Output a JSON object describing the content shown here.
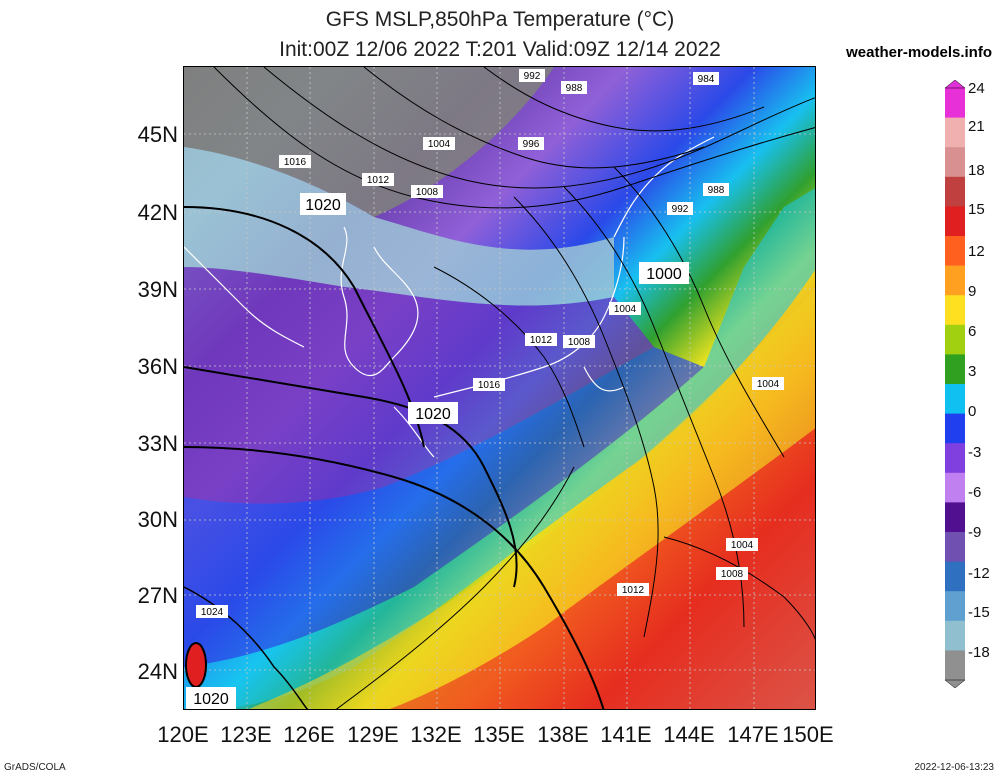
{
  "header": {
    "title_line1": "GFS MSLP,850hPa Temperature (°C)",
    "title_line2": "Init:00Z 12/06 2022 T:201 Valid:09Z 12/14 2022",
    "brand": "weather-models.info"
  },
  "footer": {
    "left": "GrADS/COLA",
    "right": "2022-12-06-13:23"
  },
  "axes": {
    "lat_labels": [
      "45N",
      "42N",
      "39N",
      "36N",
      "33N",
      "30N",
      "27N",
      "24N"
    ],
    "lon_labels": [
      "120E",
      "123E",
      "126E",
      "129E",
      "132E",
      "135E",
      "138E",
      "141E",
      "144E",
      "147E",
      "150E"
    ]
  },
  "colorbar": {
    "labels": [
      "24",
      "21",
      "18",
      "15",
      "12",
      "9",
      "6",
      "3",
      "0",
      "-3",
      "-6",
      "-9",
      "-12",
      "-15",
      "-18"
    ],
    "colors": [
      "#e830d8",
      "#f0b0b0",
      "#d89090",
      "#c04040",
      "#e02020",
      "#ff6020",
      "#ffa020",
      "#ffe020",
      "#a0d010",
      "#30a020",
      "#10c0f0",
      "#2040f0",
      "#8040e0",
      "#c080f0",
      "#501090",
      "#7050b0",
      "#3070c0",
      "#60a0d0",
      "#90c0d0",
      "#909090"
    ]
  },
  "isobars": {
    "labels": [
      "992",
      "988",
      "984",
      "1004",
      "996",
      "1016",
      "1012",
      "1008",
      "1020",
      "988",
      "992",
      "1000",
      "1004",
      "1012",
      "1008",
      "1016",
      "1020",
      "1004",
      "1004",
      "1008",
      "1012",
      "1024",
      "1020"
    ]
  }
}
